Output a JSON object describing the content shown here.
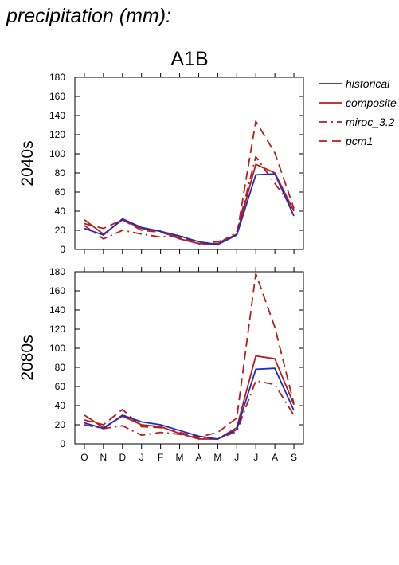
{
  "page_title": "precipitation (mm):",
  "scenario_label": "A1B",
  "colors": {
    "historical": "#1f2dbf",
    "models": "#b81c1c"
  },
  "legend": [
    {
      "label": "historical",
      "series": "historical"
    },
    {
      "label": "composite",
      "series": "composite"
    },
    {
      "label": "miroc_3.2",
      "series": "miroc_3.2"
    },
    {
      "label": "pcm1",
      "series": "pcm1"
    }
  ],
  "chart_data": [
    {
      "type": "line",
      "panel": "2040s",
      "ylabel": "2040s",
      "ylim": [
        0,
        180
      ],
      "yticks": [
        0,
        20,
        40,
        60,
        80,
        100,
        120,
        140,
        160,
        180
      ],
      "categories": [
        "O",
        "N",
        "D",
        "J",
        "F",
        "M",
        "A",
        "M",
        "J",
        "J",
        "A",
        "S"
      ],
      "series": [
        {
          "name": "historical",
          "style": "solid",
          "color": "#1f2dbf",
          "values": [
            22,
            15,
            32,
            23,
            19,
            14,
            8,
            5,
            15,
            78,
            79,
            35
          ]
        },
        {
          "name": "composite",
          "style": "solid",
          "color": "#b81c1c",
          "values": [
            31,
            16,
            31,
            22,
            19,
            11,
            6,
            6,
            16,
            89,
            80,
            40
          ]
        },
        {
          "name": "miroc_3.2",
          "style": "dashdot",
          "color": "#b81c1c",
          "values": [
            25,
            11,
            20,
            16,
            13,
            15,
            5,
            6,
            18,
            97,
            69,
            42
          ]
        },
        {
          "name": "pcm1",
          "style": "dashed",
          "color": "#b81c1c",
          "values": [
            27,
            22,
            31,
            20,
            18,
            12,
            6,
            8,
            15,
            134,
            101,
            43
          ]
        }
      ]
    },
    {
      "type": "line",
      "panel": "2080s",
      "ylabel": "2080s",
      "ylim": [
        0,
        180
      ],
      "yticks": [
        0,
        20,
        40,
        60,
        80,
        100,
        120,
        140,
        160,
        180
      ],
      "categories": [
        "O",
        "N",
        "D",
        "J",
        "F",
        "M",
        "A",
        "M",
        "J",
        "J",
        "A",
        "S"
      ],
      "series": [
        {
          "name": "historical",
          "style": "solid",
          "color": "#1f2dbf",
          "values": [
            22,
            16,
            30,
            23,
            20,
            14,
            8,
            5,
            15,
            78,
            79,
            35
          ]
        },
        {
          "name": "composite",
          "style": "solid",
          "color": "#b81c1c",
          "values": [
            30,
            17,
            29,
            20,
            18,
            11,
            5,
            5,
            17,
            92,
            89,
            41
          ]
        },
        {
          "name": "miroc_3.2",
          "style": "dashdot",
          "color": "#b81c1c",
          "values": [
            20,
            16,
            19,
            9,
            12,
            10,
            6,
            5,
            13,
            66,
            62,
            30
          ]
        },
        {
          "name": "pcm1",
          "style": "dashed",
          "color": "#b81c1c",
          "values": [
            25,
            20,
            36,
            18,
            17,
            12,
            7,
            12,
            27,
            178,
            122,
            42
          ]
        }
      ]
    }
  ]
}
